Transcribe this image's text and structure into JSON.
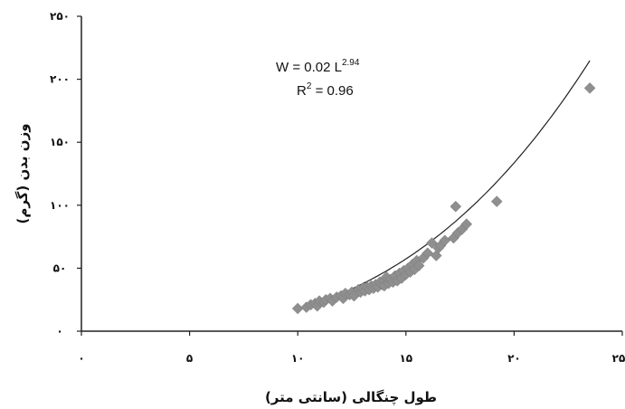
{
  "chart_data": {
    "type": "scatter",
    "xlabel": "طول چنگالی (سانتی متر)",
    "ylabel": "وزن بدن (گرم)",
    "xlim": [
      0,
      25
    ],
    "ylim": [
      0,
      250
    ],
    "x_ticks": [
      0,
      5,
      10,
      15,
      20,
      25
    ],
    "y_ticks": [
      0,
      50,
      100,
      150,
      200,
      250
    ],
    "x_tick_labels": [
      "۰",
      "۵",
      "۱۰",
      "۱۵",
      "۲۰",
      "۲۵"
    ],
    "y_tick_labels": [
      "۰",
      "۵۰",
      "۱۰۰",
      "۱۵۰",
      "۲۰۰",
      "۲۵۰"
    ],
    "grid": false,
    "annotation": {
      "equation_prefix": "W = 0.02 L",
      "equation_exp": "2.94",
      "r2_prefix": "R",
      "r2_exp": "2",
      "r2_suffix": " = 0.96"
    },
    "trendline": {
      "type": "power",
      "a": 0.02,
      "b": 2.94,
      "x_range": [
        10,
        23.5
      ]
    },
    "marker_color": "#8f8f8f",
    "series": [
      {
        "points": [
          [
            10.0,
            18
          ],
          [
            10.4,
            19
          ],
          [
            10.6,
            21
          ],
          [
            10.8,
            22
          ],
          [
            10.9,
            20
          ],
          [
            11.0,
            24
          ],
          [
            11.2,
            23
          ],
          [
            11.3,
            25
          ],
          [
            11.5,
            26
          ],
          [
            11.6,
            24
          ],
          [
            11.8,
            27
          ],
          [
            12.0,
            28
          ],
          [
            12.1,
            26
          ],
          [
            12.2,
            30
          ],
          [
            12.4,
            29
          ],
          [
            12.5,
            31
          ],
          [
            12.6,
            28
          ],
          [
            12.8,
            33
          ],
          [
            12.9,
            31
          ],
          [
            13.0,
            34
          ],
          [
            13.1,
            32
          ],
          [
            13.2,
            35
          ],
          [
            13.3,
            33
          ],
          [
            13.4,
            36
          ],
          [
            13.5,
            34
          ],
          [
            13.6,
            37
          ],
          [
            13.7,
            35
          ],
          [
            13.8,
            39
          ],
          [
            13.9,
            37
          ],
          [
            14.0,
            40
          ],
          [
            14.0,
            36
          ],
          [
            14.1,
            43
          ],
          [
            14.2,
            38
          ],
          [
            14.3,
            41
          ],
          [
            14.4,
            39
          ],
          [
            14.5,
            44
          ],
          [
            14.6,
            40
          ],
          [
            14.7,
            46
          ],
          [
            14.8,
            42
          ],
          [
            14.9,
            48
          ],
          [
            15.0,
            45
          ],
          [
            15.1,
            50
          ],
          [
            15.2,
            47
          ],
          [
            15.3,
            53
          ],
          [
            15.4,
            49
          ],
          [
            15.5,
            56
          ],
          [
            15.6,
            52
          ],
          [
            15.8,
            58
          ],
          [
            16.0,
            62
          ],
          [
            16.2,
            70
          ],
          [
            16.4,
            60
          ],
          [
            16.5,
            66
          ],
          [
            16.6,
            68
          ],
          [
            16.8,
            72
          ],
          [
            17.2,
            74
          ],
          [
            17.4,
            78
          ],
          [
            17.6,
            81
          ],
          [
            17.8,
            85
          ],
          [
            17.3,
            99
          ],
          [
            19.2,
            103
          ],
          [
            23.5,
            193
          ]
        ]
      }
    ]
  }
}
